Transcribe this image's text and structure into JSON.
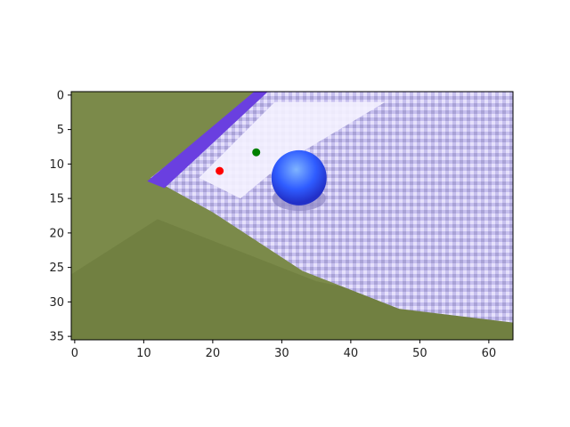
{
  "chart_data": {
    "type": "scatter",
    "title": "",
    "xlabel": "",
    "ylabel": "",
    "image_grid": {
      "cols": 64,
      "rows": 36
    },
    "xlim": [
      -0.5,
      63.5
    ],
    "ylim": [
      35.5,
      -0.5
    ],
    "y_inverted": true,
    "grid": false,
    "x_ticks": [
      0,
      10,
      20,
      30,
      40,
      50,
      60
    ],
    "y_ticks": [
      0,
      5,
      10,
      15,
      20,
      25,
      30,
      35
    ],
    "points": [
      {
        "x": 21.0,
        "y": 11.0,
        "color": "#ff0000"
      },
      {
        "x": 26.3,
        "y": 8.3,
        "color": "#008000"
      }
    ],
    "background_image": {
      "ground_color": "#7b8a4a",
      "object_color": "#c9c1ef",
      "edge_color": "#6a3fe0",
      "ball_color": "#3a6cff"
    }
  }
}
